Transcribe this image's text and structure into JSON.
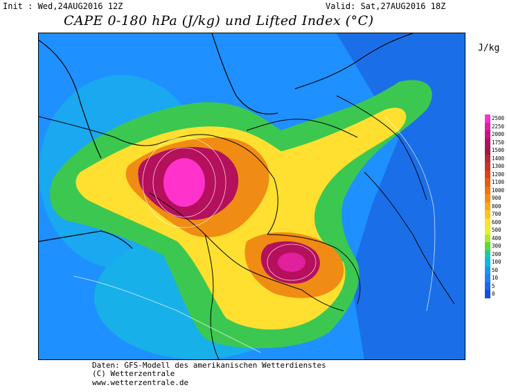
{
  "header": {
    "init": "Init : Wed,24AUG2016 12Z",
    "valid": "Valid: Sat,27AUG2016 18Z",
    "title": "CAPE 0-180 hPa (J/kg) und Lifted Index (°C)"
  },
  "legend": {
    "unit": "J/kg",
    "levels": [
      {
        "label": "2500",
        "color": "#ff33cc"
      },
      {
        "label": "2250",
        "color": "#e0209c"
      },
      {
        "label": "2000",
        "color": "#c8147c"
      },
      {
        "label": "1750",
        "color": "#b4105c"
      },
      {
        "label": "1500",
        "color": "#a01848"
      },
      {
        "label": "1400",
        "color": "#b42838"
      },
      {
        "label": "1300",
        "color": "#c83428"
      },
      {
        "label": "1200",
        "color": "#dc4418"
      },
      {
        "label": "1100",
        "color": "#e85c10"
      },
      {
        "label": "1000",
        "color": "#f07410"
      },
      {
        "label": "900",
        "color": "#f48c14"
      },
      {
        "label": "800",
        "color": "#f8a818"
      },
      {
        "label": "700",
        "color": "#fcc420"
      },
      {
        "label": "600",
        "color": "#ffe030"
      },
      {
        "label": "500",
        "color": "#e8f030"
      },
      {
        "label": "400",
        "color": "#b0e830"
      },
      {
        "label": "300",
        "color": "#60d838"
      },
      {
        "label": "200",
        "color": "#20c8a0"
      },
      {
        "label": "100",
        "color": "#10b8e0"
      },
      {
        "label": "50",
        "color": "#1898f0"
      },
      {
        "label": "10",
        "color": "#2080f8"
      },
      {
        "label": "5",
        "color": "#1868f0"
      },
      {
        "label": "0",
        "color": "#1050e0"
      }
    ]
  },
  "footer": {
    "line1": "Daten: GFS-Modell des amerikanischen Wetterdienstes",
    "line2": "(C) Wetterzentrale",
    "line3": "www.wetterzentrale.de"
  },
  "colors": {
    "sea_blue": "#1e90ff",
    "low_green": "#40cc50",
    "mid_yellow": "#ffe030",
    "high_orange": "#f08020",
    "max_magenta": "#e0209c"
  }
}
